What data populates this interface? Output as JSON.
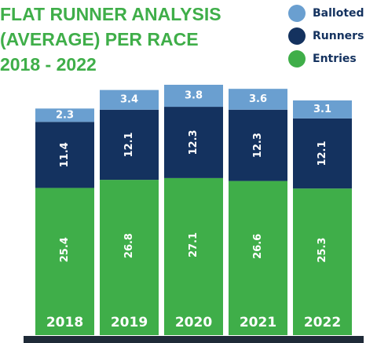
{
  "chart_data": {
    "type": "stacked_bar",
    "title": [
      "FLAT RUNNER ANALYSIS",
      "(AVERAGE) PER RACE",
      "2018 - 2022"
    ],
    "categories": [
      "2018",
      "2019",
      "2020",
      "2021",
      "2022"
    ],
    "series": [
      {
        "name": "Entries",
        "color": "#3fae49",
        "values": [
          25.4,
          26.8,
          27.1,
          26.6,
          25.3
        ]
      },
      {
        "name": "Runners",
        "color": "#14325f",
        "values": [
          11.4,
          12.1,
          12.3,
          12.3,
          12.1
        ]
      },
      {
        "name": "Balloted",
        "color": "#6a9fd0",
        "values": [
          2.3,
          3.4,
          3.8,
          3.6,
          3.1
        ]
      }
    ],
    "legend": "top-right"
  }
}
